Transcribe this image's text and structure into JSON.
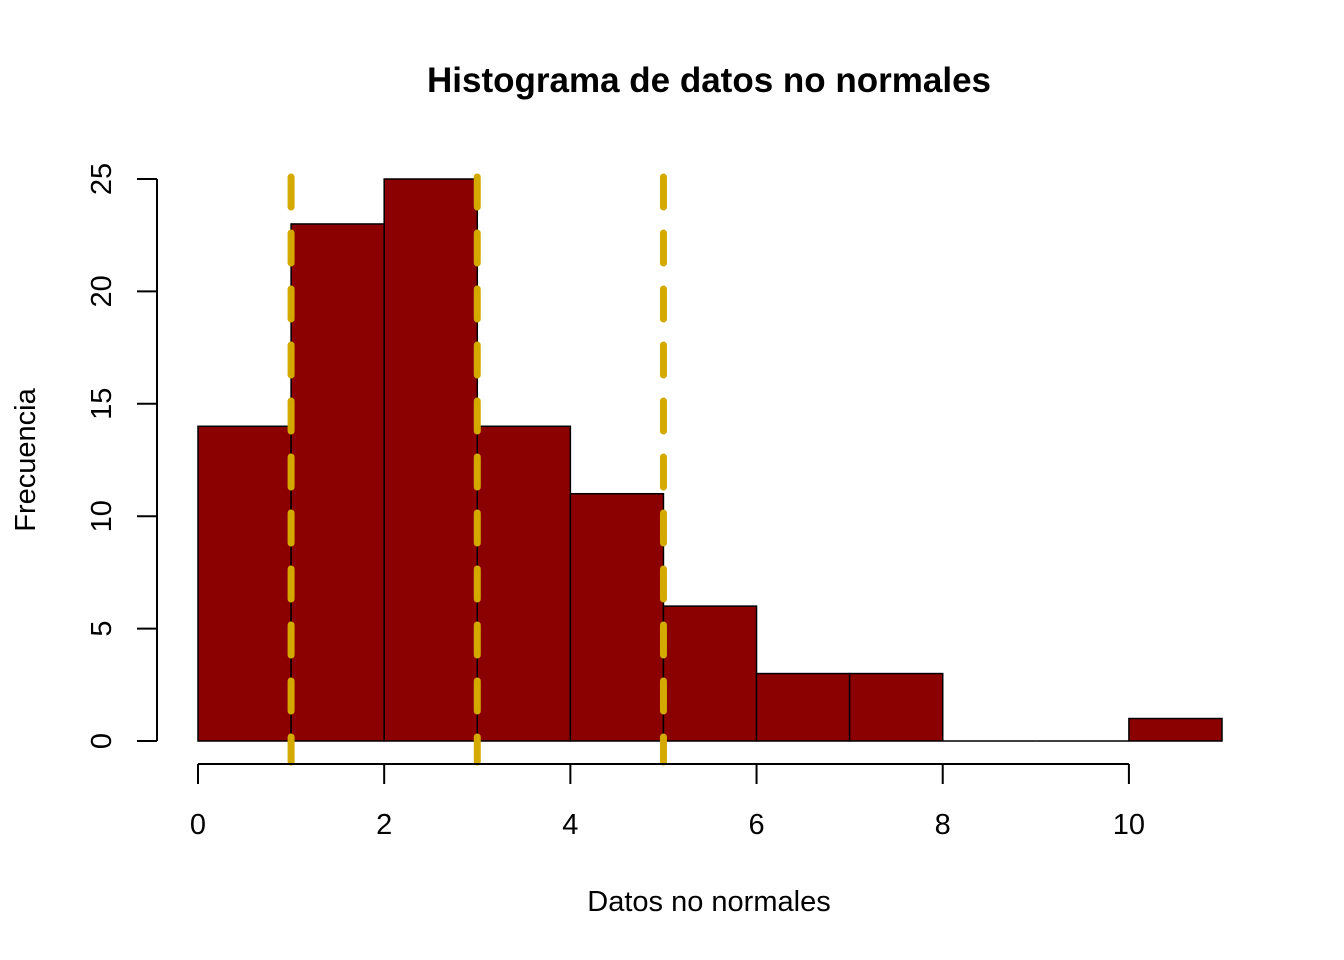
{
  "chart_data": {
    "type": "bar",
    "title": "Histograma de datos no normales",
    "xlabel": "Datos no normales",
    "ylabel": "Frecuencia",
    "bins": [
      {
        "start": 0,
        "end": 1,
        "count": 14
      },
      {
        "start": 1,
        "end": 2,
        "count": 23
      },
      {
        "start": 2,
        "end": 3,
        "count": 25
      },
      {
        "start": 3,
        "end": 4,
        "count": 14
      },
      {
        "start": 4,
        "end": 5,
        "count": 11
      },
      {
        "start": 5,
        "end": 6,
        "count": 6
      },
      {
        "start": 6,
        "end": 7,
        "count": 3
      },
      {
        "start": 7,
        "end": 8,
        "count": 3
      },
      {
        "start": 8,
        "end": 9,
        "count": 0
      },
      {
        "start": 9,
        "end": 10,
        "count": 0
      },
      {
        "start": 10,
        "end": 11,
        "count": 1
      }
    ],
    "xlim": [
      0,
      11
    ],
    "ylim": [
      0,
      25
    ],
    "x_ticks": [
      "0",
      "2",
      "4",
      "6",
      "8",
      "10"
    ],
    "y_ticks": [
      "0",
      "5",
      "10",
      "15",
      "20",
      "25"
    ],
    "vertical_lines": [
      1,
      3,
      5
    ],
    "bar_color": "#8B0000",
    "line_color": "#D4AA00",
    "line_style": "dashed",
    "grid": false
  }
}
